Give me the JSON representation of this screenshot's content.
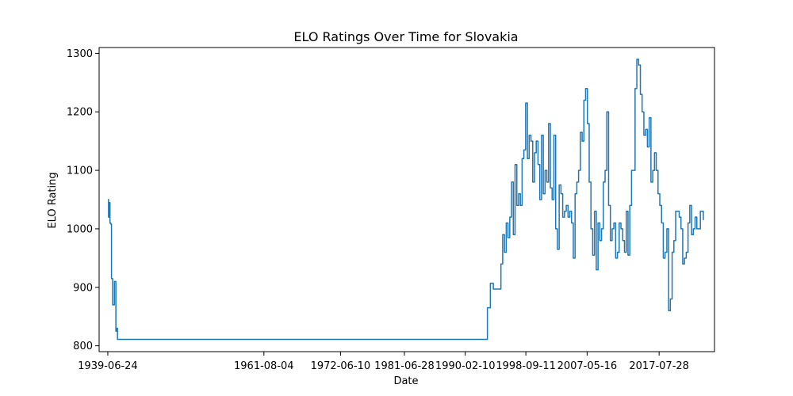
{
  "chart_data": {
    "type": "line",
    "title": "ELO Ratings Over Time for Slovakia",
    "xlabel": "Date",
    "ylabel": "ELO Rating",
    "xlim": [
      "1938-04-01",
      "2025-06-01"
    ],
    "ylim": [
      790,
      1310
    ],
    "grid": false,
    "x_ticks": [
      "1939-06-24",
      "1961-08-04",
      "1972-06-10",
      "1981-06-28",
      "1990-02-10",
      "1998-09-11",
      "2007-05-16",
      "2017-07-28"
    ],
    "y_ticks": [
      800,
      900,
      1000,
      1100,
      1200,
      1300
    ],
    "line_color": "#1f77b4",
    "series": [
      {
        "x": [
          "1939-06-24",
          "1939-08-01",
          "1939-09-10",
          "1939-10-15",
          "1939-11-20",
          "1940-01-01",
          "1940-03-01",
          "1940-06-01",
          "1940-08-15",
          "1940-10-10",
          "1940-11-05",
          "1941-01-20",
          "1941-03-15",
          "1941-05-01",
          "1941-06-15",
          "1941-08-01",
          "1941-09-20",
          "1941-11-01",
          "1993-01-01",
          "1993-04-01",
          "1993-09-01",
          "1994-02-01",
          "1994-09-01",
          "1995-03-01",
          "1995-06-01",
          "1995-09-01",
          "1995-12-01",
          "1996-03-01",
          "1996-06-01",
          "1996-09-01",
          "1996-12-01",
          "1997-03-01",
          "1997-06-01",
          "1997-09-01",
          "1997-12-01",
          "1998-03-01",
          "1998-06-01",
          "1998-09-01",
          "1998-12-01",
          "1999-03-01",
          "1999-06-01",
          "1999-09-01",
          "1999-12-01",
          "2000-03-01",
          "2000-06-01",
          "2000-09-01",
          "2000-12-01",
          "2001-03-01",
          "2001-06-01",
          "2001-09-01",
          "2001-12-01",
          "2002-03-01",
          "2002-06-01",
          "2002-09-01",
          "2002-12-01",
          "2003-03-01",
          "2003-06-01",
          "2003-09-01",
          "2003-12-01",
          "2004-03-01",
          "2004-06-01",
          "2004-09-01",
          "2004-12-01",
          "2005-03-01",
          "2005-06-01",
          "2005-09-01",
          "2005-12-01",
          "2006-03-01",
          "2006-06-01",
          "2006-09-01",
          "2006-12-01",
          "2007-03-01",
          "2007-06-01",
          "2007-09-01",
          "2007-12-01",
          "2008-03-01",
          "2008-06-01",
          "2008-09-01",
          "2008-12-01",
          "2009-03-01",
          "2009-06-01",
          "2009-09-01",
          "2009-12-01",
          "2010-03-01",
          "2010-06-01",
          "2010-09-01",
          "2010-12-01",
          "2011-03-01",
          "2011-06-01",
          "2011-09-01",
          "2011-12-01",
          "2012-03-01",
          "2012-06-01",
          "2012-09-01",
          "2012-12-01",
          "2013-03-01",
          "2013-06-01",
          "2013-09-01",
          "2013-12-01",
          "2014-03-01",
          "2014-06-01",
          "2014-09-01",
          "2014-12-01",
          "2015-03-01",
          "2015-06-01",
          "2015-09-01",
          "2015-12-01",
          "2016-03-01",
          "2016-06-01",
          "2016-09-01",
          "2016-12-01",
          "2017-03-01",
          "2017-06-01",
          "2017-09-01",
          "2017-12-01",
          "2018-03-01",
          "2018-06-01",
          "2018-09-01",
          "2018-12-01",
          "2019-03-01",
          "2019-06-01",
          "2019-09-01",
          "2019-12-01",
          "2020-03-01",
          "2020-06-01",
          "2020-09-01",
          "2020-12-01",
          "2021-03-01",
          "2021-06-01",
          "2021-09-01",
          "2021-12-01",
          "2022-03-01",
          "2022-06-01",
          "2022-09-01",
          "2022-12-01",
          "2023-06-01",
          "2023-11-01"
        ],
        "values": [
          1050,
          1020,
          1045,
          1010,
          1008,
          915,
          870,
          910,
          825,
          830,
          811,
          811,
          811,
          811,
          811,
          811,
          811,
          811,
          811,
          865,
          907,
          897,
          897,
          940,
          990,
          960,
          1010,
          985,
          1020,
          1080,
          990,
          1110,
          1040,
          1060,
          1040,
          1120,
          1135,
          1215,
          1120,
          1160,
          1150,
          1080,
          1130,
          1150,
          1110,
          1050,
          1160,
          1060,
          1100,
          1080,
          1180,
          1070,
          1050,
          1160,
          1000,
          965,
          1075,
          1060,
          1020,
          1030,
          1040,
          1020,
          1030,
          1010,
          950,
          1060,
          1080,
          1100,
          1165,
          1150,
          1220,
          1240,
          1180,
          1080,
          1000,
          955,
          1030,
          930,
          1010,
          980,
          1000,
          1080,
          1100,
          1200,
          1040,
          980,
          1000,
          1010,
          950,
          960,
          1010,
          1000,
          980,
          960,
          1030,
          955,
          1040,
          1100,
          1100,
          1240,
          1290,
          1280,
          1230,
          1200,
          1160,
          1170,
          1140,
          1190,
          1080,
          1100,
          1130,
          1100,
          1060,
          1040,
          1010,
          950,
          960,
          1000,
          860,
          880,
          960,
          980,
          1030,
          1030,
          1020,
          1000,
          940,
          950,
          960,
          1010,
          1040,
          990,
          1000,
          1020,
          1000,
          1030,
          1015
        ]
      }
    ]
  }
}
